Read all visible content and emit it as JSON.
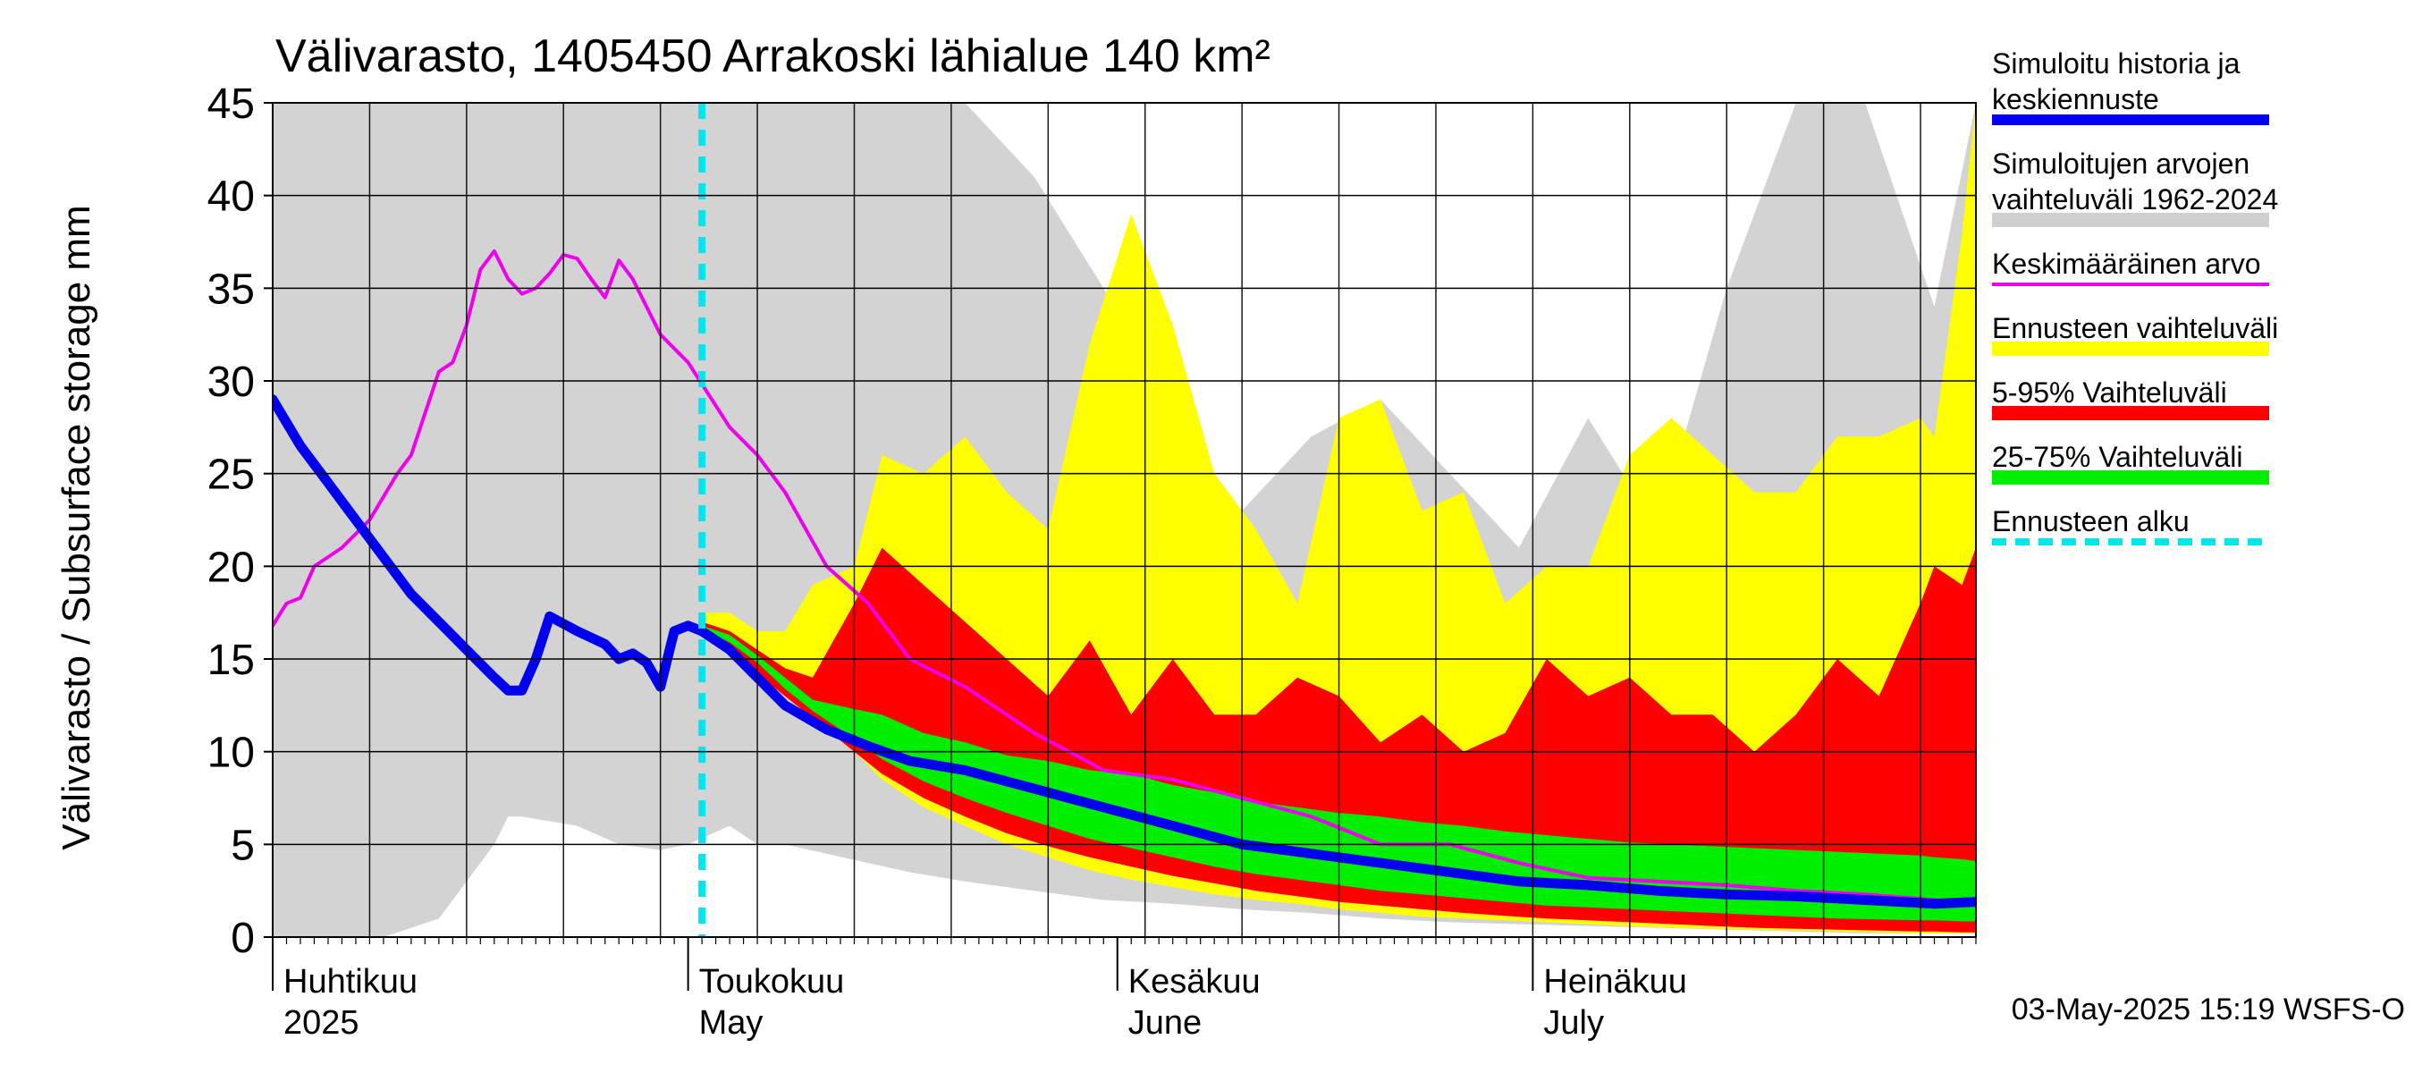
{
  "chart_data": {
    "type": "area",
    "title": "Välivarasto, 1405450 Arrakoski lähialue 140 km²",
    "ylabel": "Välivarasto / Subsurface storage  mm",
    "ylim": [
      0,
      45
    ],
    "yticks": [
      0,
      5,
      10,
      15,
      20,
      25,
      30,
      35,
      40,
      45
    ],
    "xlim_days": [
      0,
      123
    ],
    "x_start_date": "2025-04-01",
    "month_labels": [
      {
        "line1": "Huhtikuu",
        "line2": "2025",
        "day": 0
      },
      {
        "line1": "Toukokuu",
        "line2": "May",
        "day": 30
      },
      {
        "line1": "Kesäkuu",
        "line2": "June",
        "day": 61
      },
      {
        "line1": "Heinäkuu",
        "line2": "July",
        "day": 91
      }
    ],
    "forecast_start_day": 31,
    "footer": "03-May-2025 15:19 WSFS-O",
    "legend": [
      {
        "label_lines": [
          "Simuloitu historia ja",
          "keskiennuste"
        ],
        "color": "#0000ee",
        "style": "thick"
      },
      {
        "label_lines": [
          "Simuloitujen arvojen",
          "vaihteluväli 1962-2024"
        ],
        "color": "#cfcfcf",
        "style": "band"
      },
      {
        "label_lines": [
          "Keskimääräinen arvo"
        ],
        "color": "#ee00ee",
        "style": "line"
      },
      {
        "label_lines": [
          "Ennusteen vaihteluväli"
        ],
        "color": "#ffff00",
        "style": "band"
      },
      {
        "label_lines": [
          "5-95% Vaihteluväli"
        ],
        "color": "#ff0000",
        "style": "band"
      },
      {
        "label_lines": [
          "25-75% Vaihteluväli"
        ],
        "color": "#00ee00",
        "style": "band"
      },
      {
        "label_lines": [
          "Ennusteen alku"
        ],
        "color": "#00e5ee",
        "style": "dashed"
      }
    ],
    "series": [
      {
        "name": "Simuloitujen arvojen vaihteluväli 1962-2024",
        "kind": "band",
        "color": "#d3d3d3",
        "x": [
          0,
          2,
          5,
          8,
          10,
          12,
          14,
          16,
          17,
          18,
          22,
          25,
          28,
          30,
          33,
          35,
          37,
          40,
          43,
          46,
          50,
          55,
          60,
          65,
          70,
          75,
          80,
          85,
          90,
          95,
          100,
          105,
          110,
          115,
          120,
          123
        ],
        "upper": [
          45,
          45,
          45,
          45,
          45,
          45,
          45,
          45,
          45,
          45,
          45,
          45,
          45,
          45,
          45,
          45,
          45,
          45,
          45,
          45,
          45,
          41,
          35,
          28,
          23,
          27,
          29,
          25,
          21,
          28,
          22,
          35,
          45,
          45,
          34,
          45
        ],
        "lower": [
          0,
          0,
          0,
          0,
          0.5,
          1,
          3,
          5,
          6.5,
          6.5,
          6,
          5,
          4.7,
          5,
          6,
          5,
          5,
          4.5,
          4,
          3.5,
          3,
          2.5,
          2,
          1.8,
          1.5,
          1.3,
          1,
          0.8,
          0.7,
          0.6,
          0.5,
          0.4,
          0.3,
          0.2,
          0.2,
          0.2
        ]
      },
      {
        "name": "Ennusteen vaihteluväli",
        "kind": "band",
        "color": "#ffff00",
        "x": [
          31,
          33,
          35,
          37,
          39,
          42,
          44,
          47,
          50,
          53,
          56,
          59,
          62,
          65,
          68,
          71,
          74,
          77,
          80,
          83,
          86,
          89,
          92,
          95,
          98,
          101,
          104,
          107,
          110,
          113,
          116,
          119,
          120,
          122,
          123
        ],
        "upper": [
          17.5,
          17.5,
          16.5,
          16.5,
          19,
          20,
          26,
          25,
          27,
          24,
          22,
          32,
          39,
          33,
          25,
          22,
          18,
          28,
          29,
          23,
          24,
          18,
          20,
          20,
          26,
          28,
          26,
          24,
          24,
          27,
          27,
          28,
          27,
          38,
          45
        ],
        "lower": [
          17,
          16,
          15,
          13.5,
          12,
          10,
          8.5,
          7,
          6,
          5,
          4.3,
          3.6,
          3.1,
          2.7,
          2.3,
          2,
          1.8,
          1.5,
          1.3,
          1.1,
          1,
          0.9,
          0.8,
          0.7,
          0.6,
          0.5,
          0.45,
          0.4,
          0.35,
          0.3,
          0.25,
          0.2,
          0.2,
          0.2,
          0.2
        ]
      },
      {
        "name": "5-95% Vaihteluväli",
        "kind": "band",
        "color": "#ff0000",
        "x": [
          31,
          33,
          35,
          37,
          39,
          42,
          44,
          47,
          50,
          53,
          56,
          59,
          62,
          65,
          68,
          71,
          74,
          77,
          80,
          83,
          86,
          89,
          92,
          95,
          98,
          101,
          104,
          107,
          110,
          113,
          116,
          119,
          120,
          122,
          123
        ],
        "upper": [
          17,
          16.5,
          15.5,
          14.5,
          14,
          18,
          21,
          19,
          17,
          15,
          13,
          16,
          12,
          15,
          12,
          12,
          14,
          13,
          10.5,
          12,
          10,
          11,
          15,
          13,
          14,
          12,
          12,
          10,
          12,
          15,
          13,
          18,
          20,
          19,
          21
        ],
        "lower": [
          16.5,
          15.5,
          14.2,
          13,
          11.8,
          10,
          8.8,
          7.5,
          6.5,
          5.6,
          4.9,
          4.3,
          3.8,
          3.3,
          2.9,
          2.5,
          2.2,
          1.9,
          1.7,
          1.5,
          1.3,
          1.15,
          1,
          0.9,
          0.8,
          0.7,
          0.6,
          0.5,
          0.45,
          0.4,
          0.35,
          0.3,
          0.3,
          0.25,
          0.25
        ]
      },
      {
        "name": "25-75% Vaihteluväli",
        "kind": "band",
        "color": "#00ee00",
        "x": [
          31,
          33,
          35,
          37,
          39,
          42,
          44,
          47,
          50,
          53,
          56,
          59,
          62,
          65,
          68,
          71,
          74,
          77,
          80,
          83,
          86,
          89,
          92,
          95,
          98,
          101,
          104,
          107,
          110,
          113,
          116,
          119,
          120,
          122,
          123
        ],
        "upper": [
          16.8,
          16.3,
          15.2,
          14,
          12.8,
          12.3,
          12,
          11,
          10.5,
          9.8,
          9.5,
          9,
          8.8,
          8.2,
          7.8,
          7.3,
          7,
          6.7,
          6.5,
          6.2,
          6,
          5.7,
          5.5,
          5.3,
          5.1,
          5,
          4.9,
          4.8,
          4.7,
          4.6,
          4.5,
          4.4,
          4.3,
          4.2,
          4.1
        ],
        "lower": [
          16.6,
          15.9,
          14.8,
          13.4,
          12.2,
          10.7,
          9.6,
          8.4,
          7.5,
          6.7,
          6,
          5.3,
          4.8,
          4.3,
          3.8,
          3.4,
          3.1,
          2.8,
          2.5,
          2.3,
          2.1,
          1.9,
          1.7,
          1.6,
          1.5,
          1.4,
          1.3,
          1.2,
          1.1,
          1,
          0.95,
          0.9,
          0.9,
          0.85,
          0.85
        ]
      },
      {
        "name": "Keskimääräinen arvo",
        "kind": "line",
        "color": "#ee00ee",
        "width": 4,
        "x": [
          0,
          1,
          2,
          3,
          4,
          5,
          7,
          9,
          10,
          12,
          13,
          14,
          15,
          16,
          17,
          18,
          19,
          20,
          21,
          22,
          23,
          24,
          25,
          26,
          27,
          28,
          30,
          33,
          35,
          37,
          40,
          43,
          46,
          50,
          55,
          60,
          65,
          70,
          75,
          80,
          85,
          90,
          95,
          100,
          105,
          110,
          115,
          120,
          123
        ],
        "y": [
          16.8,
          18,
          18.3,
          20,
          20.5,
          21,
          22.5,
          25,
          26,
          30.5,
          31,
          33,
          36,
          37,
          35.5,
          34.7,
          35,
          35.8,
          36.8,
          36.6,
          35.5,
          34.5,
          36.5,
          35.5,
          34,
          32.5,
          31,
          27.5,
          26,
          24,
          20,
          18,
          15,
          13.5,
          11,
          9,
          8.5,
          7.5,
          6.5,
          5,
          5,
          4,
          3.2,
          3,
          2.8,
          2.5,
          2.3,
          2,
          1.8
        ]
      },
      {
        "name": "Simuloitu historia ja keskiennuste",
        "kind": "line",
        "color": "#0000ee",
        "width": 11,
        "x": [
          0,
          2,
          4,
          6,
          8,
          10,
          12,
          14,
          16,
          17,
          18,
          19,
          20,
          22,
          24,
          25,
          26,
          27,
          28,
          29,
          30,
          31,
          33,
          35,
          37,
          40,
          43,
          46,
          50,
          55,
          60,
          65,
          70,
          75,
          80,
          85,
          90,
          95,
          100,
          105,
          110,
          115,
          120,
          123
        ],
        "y": [
          29,
          26.5,
          24.5,
          22.5,
          20.5,
          18.5,
          17,
          15.5,
          14,
          13.3,
          13.3,
          15,
          17.3,
          16.5,
          15.8,
          15,
          15.3,
          14.8,
          13.5,
          16.5,
          16.8,
          16.5,
          15.5,
          14,
          12.5,
          11.2,
          10.3,
          9.5,
          9,
          8,
          7,
          6,
          5,
          4.5,
          4,
          3.5,
          3,
          2.8,
          2.5,
          2.3,
          2.2,
          2,
          1.8,
          1.9
        ]
      }
    ]
  }
}
